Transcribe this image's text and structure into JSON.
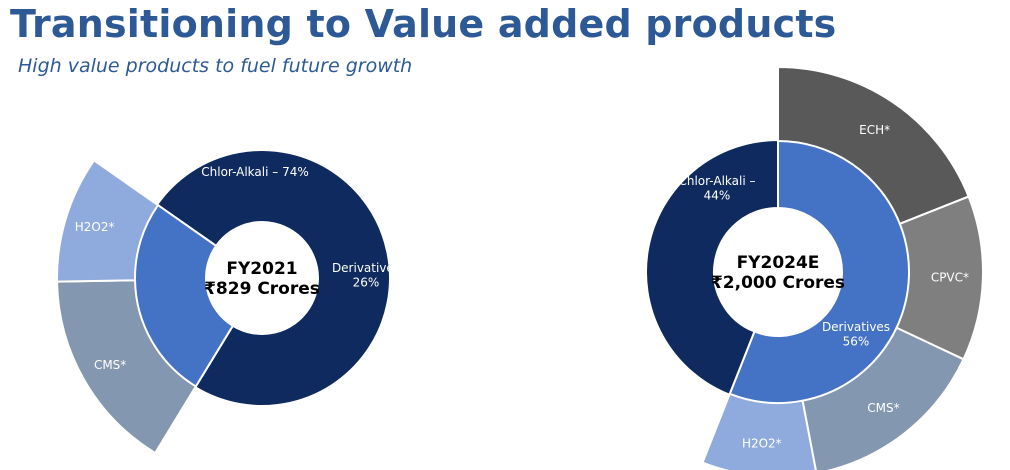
{
  "page": {
    "title": "Transitioning to Value added products",
    "subtitle": "High value products to fuel future growth"
  },
  "colors": {
    "title": "#2d5a96",
    "chlor_alkali": "#0f2a5e",
    "derivatives": "#4472c4",
    "cms": "#8497b0",
    "h2o2": "#8faadc",
    "cpvc": "#7f7f7f",
    "ech": "#595959"
  },
  "chart_data": [
    {
      "type": "sunburst",
      "center_label": [
        "FY2021",
        "₹829 Crores"
      ],
      "inner": [
        {
          "name": "Chlor-Alkali",
          "value": 74,
          "label": "Chlor-Alkali – 74%"
        },
        {
          "name": "Derivatives",
          "value": 26,
          "label": [
            "Derivatives",
            "26%"
          ]
        }
      ],
      "outer": [
        {
          "parent": "Derivatives",
          "name": "CMS*",
          "value": 16
        },
        {
          "parent": "Derivatives",
          "name": "H2O2*",
          "value": 10
        }
      ]
    },
    {
      "type": "sunburst",
      "center_label": [
        "FY2024E",
        "₹2,000 Crores"
      ],
      "inner": [
        {
          "name": "Derivatives",
          "value": 56,
          "label": [
            "Derivatives",
            "56%"
          ]
        },
        {
          "name": "Chlor-Alkali",
          "value": 44,
          "label": [
            "Chlor-Alkali –",
            "44%"
          ]
        }
      ],
      "outer": [
        {
          "parent": "Derivatives",
          "name": "ECH*",
          "value": 19
        },
        {
          "parent": "Derivatives",
          "name": "CPVC*",
          "value": 13
        },
        {
          "parent": "Derivatives",
          "name": "CMS*",
          "value": 15
        },
        {
          "parent": "Derivatives",
          "name": "H2O2*",
          "value": 9
        }
      ]
    }
  ]
}
